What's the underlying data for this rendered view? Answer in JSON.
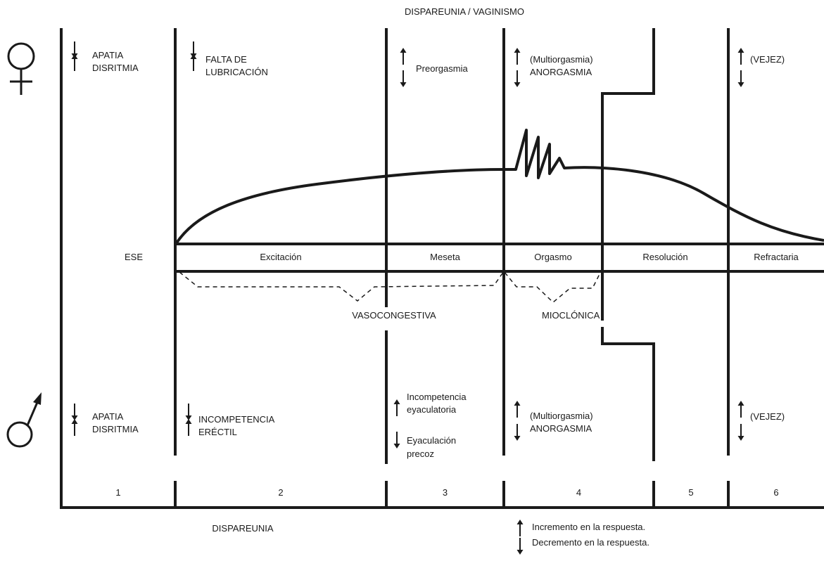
{
  "top_label": "DISPAREUNIA / VAGINISMO",
  "bottom_label": "DISPAREUNIA",
  "phases": [
    "ESE",
    "Excitación",
    "Meseta",
    "Orgasmo",
    "Resolución",
    "Refractaria"
  ],
  "mid_labels": {
    "vasocongestiva": "VASOCONGESTIVA",
    "mioclonica": "MIOCLÓNICA"
  },
  "numbers": [
    "1",
    "2",
    "3",
    "4",
    "5",
    "6"
  ],
  "female": {
    "col1": [
      "APATIA",
      "DISRITMIA"
    ],
    "col2": [
      "FALTA DE",
      "LUBRICACIÓN"
    ],
    "col3": "Preorgasmia",
    "col4": [
      "(Multiorgasmia)",
      "ANORGASMIA"
    ],
    "col6": "(VEJEZ)"
  },
  "male": {
    "col1": [
      "APATIA",
      "DISRITMIA"
    ],
    "col2": [
      "INCOMPETENCIA",
      "ERÉCTIL"
    ],
    "col3_top": [
      "Incompetencia",
      "eyaculatoria"
    ],
    "col3_bottom": [
      "Eyaculación",
      "precoz"
    ],
    "col4": [
      "(Multiorgasmia)",
      "ANORGASMIA"
    ],
    "col6": "(VEJEZ)"
  },
  "legend": {
    "increase": "Incremento en la respuesta.",
    "decrease": "Decremento en la respuesta."
  }
}
